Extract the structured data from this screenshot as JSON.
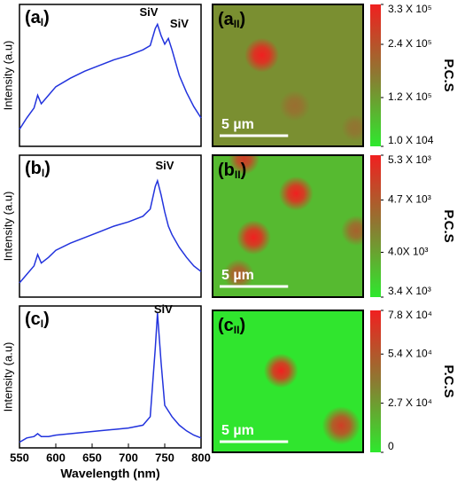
{
  "chart_data": [
    {
      "type": "line",
      "panel_label": {
        "main": "(a",
        "sub": "I",
        "end": ")"
      },
      "ylabel": "Intensity (a.u)",
      "color": "#2233dd",
      "xlim": [
        550,
        800
      ],
      "ylim": [
        0,
        1
      ],
      "x": [
        550,
        560,
        570,
        575,
        580,
        590,
        600,
        620,
        640,
        660,
        680,
        700,
        720,
        730,
        737,
        740,
        745,
        750,
        755,
        760,
        770,
        780,
        790,
        800
      ],
      "values": [
        0.12,
        0.2,
        0.27,
        0.36,
        0.3,
        0.36,
        0.42,
        0.48,
        0.53,
        0.57,
        0.61,
        0.64,
        0.68,
        0.71,
        0.83,
        0.86,
        0.78,
        0.72,
        0.76,
        0.68,
        0.5,
        0.38,
        0.28,
        0.2
      ],
      "annotations": [
        {
          "text": "SiV",
          "x": 728,
          "y": 0.94
        },
        {
          "text": "SiV",
          "x": 770,
          "y": 0.86
        }
      ]
    },
    {
      "type": "line",
      "panel_label": {
        "main": "(b",
        "sub": "I",
        "end": ")"
      },
      "ylabel": "Intensity (a.u)",
      "color": "#2233dd",
      "xlim": [
        550,
        800
      ],
      "ylim": [
        0,
        1
      ],
      "x": [
        550,
        560,
        570,
        575,
        580,
        590,
        600,
        620,
        640,
        660,
        680,
        700,
        720,
        730,
        737,
        740,
        745,
        750,
        755,
        760,
        770,
        780,
        790,
        800
      ],
      "values": [
        0.1,
        0.16,
        0.22,
        0.3,
        0.24,
        0.28,
        0.33,
        0.38,
        0.42,
        0.46,
        0.5,
        0.53,
        0.57,
        0.62,
        0.78,
        0.82,
        0.72,
        0.6,
        0.5,
        0.44,
        0.35,
        0.28,
        0.22,
        0.18
      ],
      "annotations": [
        {
          "text": "SiV",
          "x": 750,
          "y": 0.92
        }
      ]
    },
    {
      "type": "line",
      "panel_label": {
        "main": "(c",
        "sub": "I",
        "end": ")"
      },
      "ylabel": "Intensity (a.u)",
      "xlabel": "Wavelength (nm)",
      "color": "#2233dd",
      "xlim": [
        550,
        800
      ],
      "ylim": [
        0,
        1
      ],
      "xticks": [
        550,
        600,
        650,
        700,
        750,
        800
      ],
      "x": [
        550,
        560,
        570,
        575,
        580,
        590,
        600,
        620,
        640,
        660,
        680,
        700,
        720,
        730,
        737,
        740,
        745,
        750,
        755,
        760,
        770,
        780,
        790,
        800
      ],
      "values": [
        0.04,
        0.07,
        0.08,
        0.1,
        0.08,
        0.08,
        0.09,
        0.1,
        0.11,
        0.12,
        0.13,
        0.14,
        0.16,
        0.22,
        0.7,
        0.95,
        0.6,
        0.3,
        0.26,
        0.22,
        0.16,
        0.12,
        0.09,
        0.07
      ],
      "annotations": [
        {
          "text": "SiV",
          "x": 748,
          "y": 0.97
        }
      ]
    },
    {
      "type": "heatmap",
      "panel_label": {
        "main": "(a",
        "sub": "II",
        "end": ")"
      },
      "extent_um": 11,
      "scale_bar": {
        "label": "5 µm",
        "length": 5
      },
      "colormap": [
        "#2ee82e",
        "#8c7a32",
        "#f02020"
      ],
      "clim": [
        10000,
        330000
      ],
      "background": 140000,
      "spots": [
        {
          "x": 3.6,
          "y": 3.7,
          "r": 0.9,
          "value": 330000
        },
        {
          "x": 6.0,
          "y": 7.4,
          "r": 0.8,
          "value": 190000
        },
        {
          "x": 10.4,
          "y": 9.0,
          "r": 0.7,
          "value": 180000
        }
      ],
      "cticks": [
        {
          "value": 330000,
          "label": "3.3 X 10⁵"
        },
        {
          "value": 240000,
          "label": "2.4 X 10⁵"
        },
        {
          "value": 120000,
          "label": "1.2 X 10⁵"
        },
        {
          "value": 10000,
          "label": "1.0 X 104"
        }
      ],
      "colorbar_label": "P.C.S"
    },
    {
      "type": "heatmap",
      "panel_label": {
        "main": "(b",
        "sub": "II",
        "end": ")"
      },
      "extent_um": 11,
      "scale_bar": {
        "label": "5 µm",
        "length": 5
      },
      "colormap": [
        "#2ee82e",
        "#8c7a32",
        "#f02020"
      ],
      "clim": [
        3400,
        5300
      ],
      "background": 3800,
      "spots": [
        {
          "x": 6.1,
          "y": 2.8,
          "r": 0.9,
          "value": 5300
        },
        {
          "x": 3.0,
          "y": 6.0,
          "r": 0.9,
          "value": 5300
        },
        {
          "x": 2.3,
          "y": 0.3,
          "r": 0.8,
          "value": 5000
        },
        {
          "x": 1.9,
          "y": 8.7,
          "r": 0.8,
          "value": 4700
        },
        {
          "x": 10.5,
          "y": 5.5,
          "r": 0.8,
          "value": 4600
        }
      ],
      "cticks": [
        {
          "value": 5300,
          "label": "5.3 X 10³"
        },
        {
          "value": 4700,
          "label": "4.7 X 10³"
        },
        {
          "value": 4000,
          "label": "4.0X 10³"
        },
        {
          "value": 3400,
          "label": "3.4 X 10³"
        }
      ],
      "colorbar_label": "P.C.S"
    },
    {
      "type": "heatmap",
      "panel_label": {
        "main": "(c",
        "sub": "II",
        "end": ")"
      },
      "extent_um": 11,
      "scale_bar": {
        "label": "5 µm",
        "length": 5
      },
      "colormap": [
        "#2ee82e",
        "#8c7a32",
        "#f02020"
      ],
      "clim": [
        0,
        78000
      ],
      "background": 1000,
      "spots": [
        {
          "x": 5.0,
          "y": 4.4,
          "r": 0.9,
          "value": 78000
        },
        {
          "x": 9.4,
          "y": 8.4,
          "r": 1.0,
          "value": 65000
        }
      ],
      "cticks": [
        {
          "value": 78000,
          "label": "7.8 X 10⁴"
        },
        {
          "value": 54000,
          "label": "5.4 X 10⁴"
        },
        {
          "value": 27000,
          "label": "2.7 X 10⁴"
        },
        0
      ],
      "colorbar_label": "P.C.S"
    }
  ]
}
